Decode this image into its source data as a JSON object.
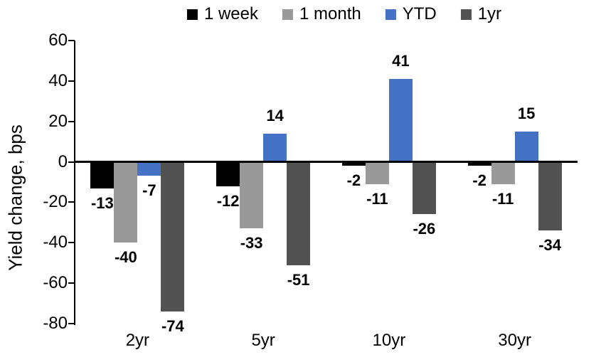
{
  "chart_data": {
    "type": "bar",
    "title": "",
    "ylabel": "Yield change, bps",
    "xlabel": "",
    "categories": [
      "2yr",
      "5yr",
      "10yr",
      "30yr"
    ],
    "series": [
      {
        "name": "1 week",
        "color": "#000000",
        "values": [
          -13,
          -12,
          -2,
          -2
        ]
      },
      {
        "name": "1 month",
        "color": "#999999",
        "values": [
          -40,
          -33,
          -11,
          -11
        ]
      },
      {
        "name": "YTD",
        "color": "#4472C4",
        "values": [
          -7,
          14,
          41,
          15
        ]
      },
      {
        "name": "1yr",
        "color": "#525252",
        "values": [
          -74,
          -51,
          -26,
          -34
        ]
      }
    ],
    "ylim": [
      -80,
      60
    ],
    "ytick_step": 20,
    "ytick_labels": [
      "60",
      "40",
      "20",
      "0",
      "-20",
      "-40",
      "-60",
      "-80"
    ],
    "grid": false,
    "legend_position": "top",
    "data_labels": true,
    "axis_color": "#000000",
    "background_color": "#ffffff"
  }
}
